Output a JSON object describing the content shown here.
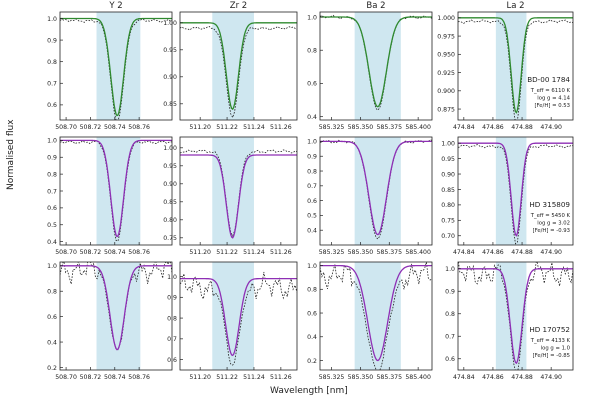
{
  "figure": {
    "xlabel": "Wavelength [nm]",
    "ylabel": "Normalised flux"
  },
  "colors": {
    "band": "#cfe7f0",
    "model_row1": "#2f8a2f",
    "model_row2": "#8e2fb5",
    "model_row3": "#8e2fb5",
    "observed": "#222222"
  },
  "chart_data": {
    "type": "line",
    "columns": [
      {
        "title": "Y 2",
        "center": 508.742,
        "xlim": [
          508.695,
          508.787
        ],
        "band": [
          508.725,
          508.761
        ],
        "xticks": [
          508.7,
          508.72,
          508.74,
          508.76
        ],
        "xtick_labels": [
          "508.70",
          "508.72",
          "508.74",
          "508.76"
        ]
      },
      {
        "title": "Zr 2",
        "center": 511.224,
        "xlim": [
          511.185,
          511.272
        ],
        "band": [
          511.209,
          511.24
        ],
        "xticks": [
          511.2,
          511.22,
          511.24,
          511.26
        ],
        "xtick_labels": [
          "511.20",
          "511.22",
          "511.24",
          "511.26"
        ]
      },
      {
        "title": "Ba 2",
        "center": 585.365,
        "xlim": [
          585.315,
          585.412
        ],
        "band": [
          585.345,
          585.385
        ],
        "xticks": [
          585.325,
          585.35,
          585.375,
          585.4
        ],
        "xtick_labels": [
          "585.325",
          "585.350",
          "585.375",
          "585.400"
        ]
      },
      {
        "title": "La 2",
        "center": 474.876,
        "xlim": [
          474.836,
          474.915
        ],
        "band": [
          474.862,
          474.883
        ],
        "xticks": [
          474.84,
          474.86,
          474.88,
          474.9
        ],
        "xtick_labels": [
          "474.84",
          "474.86",
          "474.88",
          "474.90"
        ]
      }
    ],
    "rows": [
      {
        "star": "BD-00 1784",
        "params": [
          "T_eff = 6110 K",
          "log g = 4.14",
          "[Fe/H] = 0.53"
        ],
        "model_color": "green",
        "panels": [
          {
            "ylim": [
              0.53,
              1.03
            ],
            "yticks": [
              0.6,
              0.7,
              0.8,
              0.9,
              1.0
            ],
            "ytick_labels": [
              "0.6",
              "0.7",
              "0.8",
              "0.9",
              "1.0"
            ],
            "continuum": 1.0,
            "depth": 0.45,
            "sigma": 0.0052,
            "obs_continuum": 0.99,
            "obs_depth": 0.47
          },
          {
            "ylim": [
              0.82,
              1.02
            ],
            "yticks": [
              0.85,
              0.9,
              0.95,
              1.0
            ],
            "ytick_labels": [
              "0.85",
              "0.90",
              "0.95",
              "1.00"
            ],
            "continuum": 1.0,
            "depth": 0.16,
            "sigma": 0.0045,
            "obs_continuum": 0.99,
            "obs_depth": 0.165
          },
          {
            "ylim": [
              0.38,
              1.03
            ],
            "yticks": [
              0.4,
              0.6,
              0.8,
              1.0
            ],
            "ytick_labels": [
              "0.4",
              "0.6",
              "0.8",
              "1.0"
            ],
            "continuum": 1.0,
            "depth": 0.54,
            "sigma": 0.0075,
            "obs_continuum": 1.0,
            "obs_depth": 0.56
          },
          {
            "ylim": [
              0.86,
              1.008
            ],
            "yticks": [
              0.875,
              0.9,
              0.925,
              0.95,
              0.975,
              1.0
            ],
            "ytick_labels": [
              "0.875",
              "0.900",
              "0.925",
              "0.950",
              "0.975",
              "1.000"
            ],
            "continuum": 1.0,
            "depth": 0.13,
            "sigma": 0.0034,
            "obs_continuum": 0.995,
            "obs_depth": 0.14
          }
        ]
      },
      {
        "star": "HD 315809",
        "params": [
          "T_eff = 5450 K",
          "log g = 3.02",
          "[Fe/H] = -0.93"
        ],
        "model_color": "purple",
        "panels": [
          {
            "ylim": [
              0.38,
              1.02
            ],
            "yticks": [
              0.4,
              0.5,
              0.6,
              0.7,
              0.8,
              0.9,
              1.0
            ],
            "ytick_labels": [
              "0.4",
              "0.5",
              "0.6",
              "0.7",
              "0.8",
              "0.9",
              "1.0"
            ],
            "continuum": 1.0,
            "depth": 0.57,
            "sigma": 0.0052,
            "obs_continuum": 0.99,
            "obs_depth": 0.59
          },
          {
            "ylim": [
              0.73,
              1.03
            ],
            "yticks": [
              0.75,
              0.8,
              0.85,
              0.9,
              0.95,
              1.0
            ],
            "ytick_labels": [
              "0.75",
              "0.80",
              "0.85",
              "0.90",
              "0.95",
              "1.00"
            ],
            "continuum": 0.98,
            "depth": 0.23,
            "sigma": 0.0045,
            "obs_continuum": 0.99,
            "obs_depth": 0.235
          },
          {
            "ylim": [
              0.3,
              1.03
            ],
            "yticks": [
              0.4,
              0.5,
              0.6,
              0.7,
              0.8,
              0.9,
              1.0
            ],
            "ytick_labels": [
              "0.4",
              "0.5",
              "0.6",
              "0.7",
              "0.8",
              "0.9",
              "1.0"
            ],
            "continuum": 1.0,
            "depth": 0.63,
            "sigma": 0.0075,
            "obs_continuum": 1.0,
            "obs_depth": 0.66
          },
          {
            "ylim": [
              0.67,
              1.02
            ],
            "yticks": [
              0.7,
              0.75,
              0.8,
              0.85,
              0.9,
              0.95,
              1.0
            ],
            "ytick_labels": [
              "0.70",
              "0.75",
              "0.80",
              "0.85",
              "0.90",
              "0.95",
              "1.00"
            ],
            "continuum": 1.0,
            "depth": 0.3,
            "sigma": 0.0034,
            "obs_continuum": 0.99,
            "obs_depth": 0.32
          }
        ]
      },
      {
        "star": "HD 170752",
        "params": [
          "T_eff = 4133 K",
          "log g = 1.0",
          "[Fe/H] = -0.85"
        ],
        "model_color": "purple",
        "panels": [
          {
            "ylim": [
              0.18,
              1.03
            ],
            "yticks": [
              0.2,
              0.4,
              0.6,
              0.8,
              1.0
            ],
            "ytick_labels": [
              "0.2",
              "0.4",
              "0.6",
              "0.8",
              "1.0"
            ],
            "continuum": 1.0,
            "depth": 0.66,
            "sigma": 0.0058,
            "obs_continuum": 0.97,
            "obs_depth": 0.64
          },
          {
            "ylim": [
              0.55,
              1.07
            ],
            "yticks": [
              0.6,
              0.7,
              0.8,
              0.9,
              1.0
            ],
            "ytick_labels": [
              "0.6",
              "0.7",
              "0.8",
              "0.9",
              "1.0"
            ],
            "continuum": 0.99,
            "depth": 0.37,
            "sigma": 0.005,
            "obs_continuum": 0.95,
            "obs_depth": 0.38
          },
          {
            "ylim": [
              0.12,
              1.03
            ],
            "yticks": [
              0.2,
              0.4,
              0.6,
              0.8,
              1.0
            ],
            "ytick_labels": [
              "0.2",
              "0.4",
              "0.6",
              "0.8",
              "1.0"
            ],
            "continuum": 1.0,
            "depth": 0.8,
            "sigma": 0.0085,
            "obs_continuum": 0.92,
            "obs_depth": 0.82
          },
          {
            "ylim": [
              0.55,
              1.03
            ],
            "yticks": [
              0.6,
              0.7,
              0.8,
              0.9,
              1.0
            ],
            "ytick_labels": [
              "0.6",
              "0.7",
              "0.8",
              "0.9",
              "1.0"
            ],
            "continuum": 1.0,
            "depth": 0.42,
            "sigma": 0.004,
            "obs_continuum": 0.98,
            "obs_depth": 0.44
          }
        ]
      }
    ]
  }
}
